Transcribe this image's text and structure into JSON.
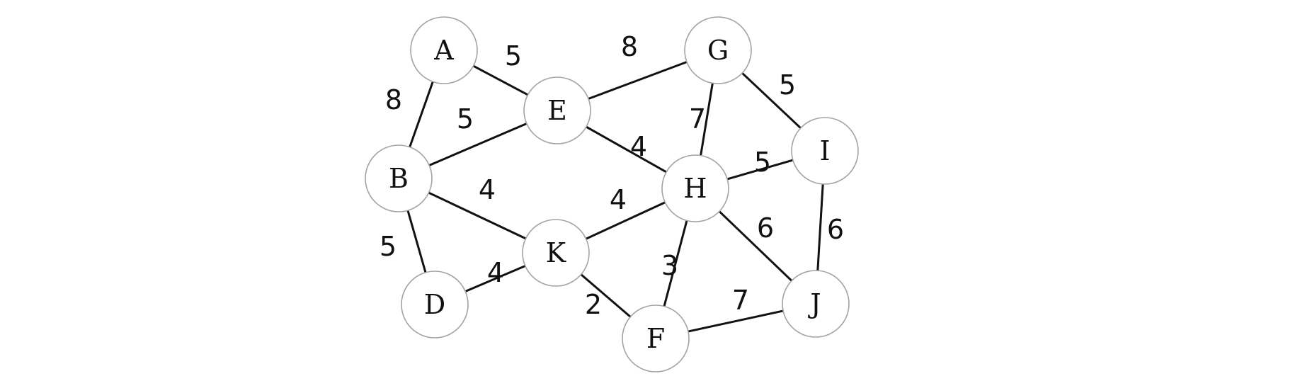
{
  "graph": {
    "nodes": [
      {
        "id": "A",
        "label": "A"
      },
      {
        "id": "B",
        "label": "B"
      },
      {
        "id": "D",
        "label": "D"
      },
      {
        "id": "E",
        "label": "E"
      },
      {
        "id": "K",
        "label": "K"
      },
      {
        "id": "F",
        "label": "F"
      },
      {
        "id": "G",
        "label": "G"
      },
      {
        "id": "H",
        "label": "H"
      },
      {
        "id": "I",
        "label": "I"
      },
      {
        "id": "J",
        "label": "J"
      }
    ],
    "edges": [
      {
        "from": "A",
        "to": "E",
        "weight": "5"
      },
      {
        "from": "A",
        "to": "B",
        "weight": "8"
      },
      {
        "from": "E",
        "to": "G",
        "weight": "8"
      },
      {
        "from": "B",
        "to": "E",
        "weight": "5"
      },
      {
        "from": "E",
        "to": "H",
        "weight": "4"
      },
      {
        "from": "G",
        "to": "H",
        "weight": "7"
      },
      {
        "from": "G",
        "to": "I",
        "weight": "5"
      },
      {
        "from": "H",
        "to": "I",
        "weight": "5"
      },
      {
        "from": "B",
        "to": "K",
        "weight": "4"
      },
      {
        "from": "K",
        "to": "H",
        "weight": "4"
      },
      {
        "from": "B",
        "to": "D",
        "weight": "5"
      },
      {
        "from": "D",
        "to": "K",
        "weight": "4"
      },
      {
        "from": "K",
        "to": "F",
        "weight": "2"
      },
      {
        "from": "H",
        "to": "F",
        "weight": "3"
      },
      {
        "from": "H",
        "to": "J",
        "weight": "6"
      },
      {
        "from": "I",
        "to": "J",
        "weight": "6"
      },
      {
        "from": "F",
        "to": "J",
        "weight": "7"
      }
    ]
  }
}
